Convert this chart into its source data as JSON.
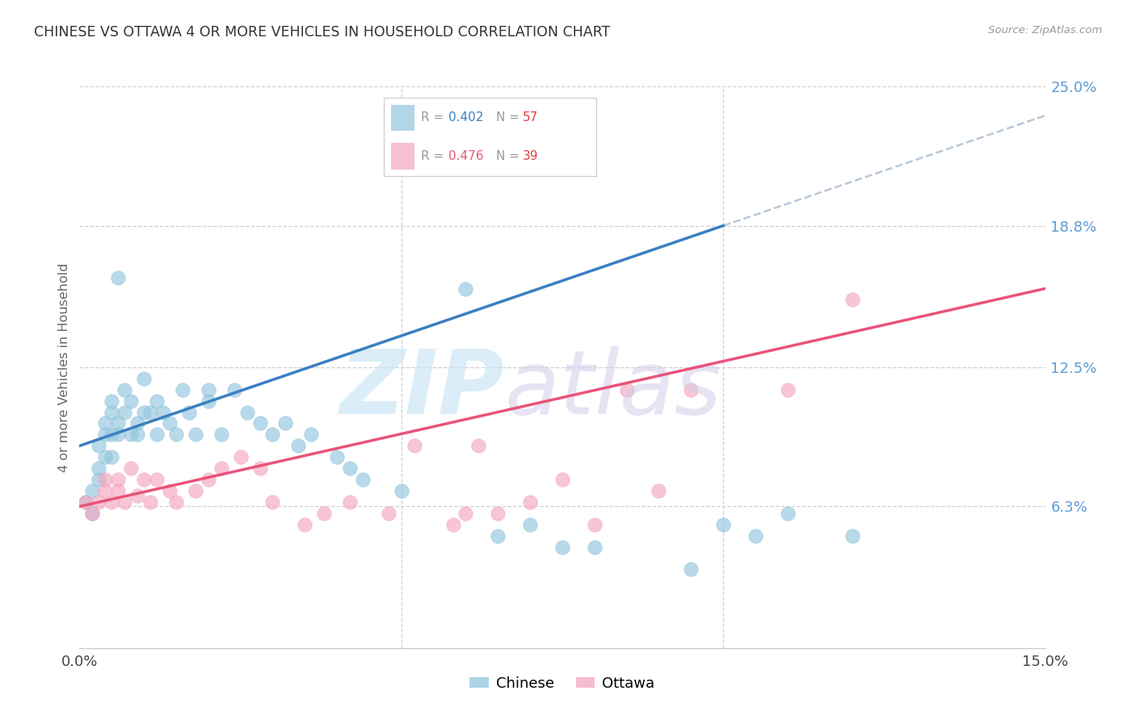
{
  "title": "CHINESE VS OTTAWA 4 OR MORE VEHICLES IN HOUSEHOLD CORRELATION CHART",
  "source": "Source: ZipAtlas.com",
  "ylabel": "4 or more Vehicles in Household",
  "xlim": [
    0.0,
    0.15
  ],
  "ylim": [
    0.0,
    0.25
  ],
  "chinese_R": 0.402,
  "chinese_N": 57,
  "ottawa_R": 0.476,
  "ottawa_N": 39,
  "chinese_color": "#92c5de",
  "ottawa_color": "#f4a6c0",
  "chinese_line_color": "#3a7fc1",
  "ottawa_line_color": "#e8537a",
  "dashed_line_color": "#b8c8d8",
  "background_color": "#ffffff",
  "grid_color": "#d0d0d0",
  "ytick_vals": [
    0.063,
    0.125,
    0.188,
    0.25
  ],
  "ytick_labels": [
    "6.3%",
    "12.5%",
    "18.8%",
    "25.0%"
  ],
  "blue_line_x0": 0.0,
  "blue_line_y0": 0.09,
  "blue_line_x1": 0.1,
  "blue_line_y1": 0.188,
  "pink_line_x0": 0.0,
  "pink_line_y0": 0.063,
  "pink_line_x1": 0.15,
  "pink_line_y1": 0.16,
  "chinese_x": [
    0.001,
    0.002,
    0.002,
    0.003,
    0.003,
    0.003,
    0.004,
    0.004,
    0.004,
    0.005,
    0.005,
    0.005,
    0.005,
    0.006,
    0.006,
    0.006,
    0.007,
    0.007,
    0.008,
    0.008,
    0.009,
    0.009,
    0.01,
    0.01,
    0.011,
    0.012,
    0.012,
    0.013,
    0.014,
    0.015,
    0.016,
    0.017,
    0.018,
    0.02,
    0.02,
    0.022,
    0.024,
    0.026,
    0.028,
    0.03,
    0.032,
    0.034,
    0.036,
    0.04,
    0.042,
    0.044,
    0.05,
    0.06,
    0.065,
    0.07,
    0.075,
    0.08,
    0.095,
    0.1,
    0.105,
    0.11,
    0.12
  ],
  "chinese_y": [
    0.065,
    0.07,
    0.06,
    0.08,
    0.075,
    0.09,
    0.085,
    0.095,
    0.1,
    0.085,
    0.095,
    0.105,
    0.11,
    0.095,
    0.1,
    0.165,
    0.105,
    0.115,
    0.095,
    0.11,
    0.1,
    0.095,
    0.105,
    0.12,
    0.105,
    0.11,
    0.095,
    0.105,
    0.1,
    0.095,
    0.115,
    0.105,
    0.095,
    0.115,
    0.11,
    0.095,
    0.115,
    0.105,
    0.1,
    0.095,
    0.1,
    0.09,
    0.095,
    0.085,
    0.08,
    0.075,
    0.07,
    0.16,
    0.05,
    0.055,
    0.045,
    0.045,
    0.035,
    0.055,
    0.05,
    0.06,
    0.05
  ],
  "ottawa_x": [
    0.001,
    0.002,
    0.003,
    0.004,
    0.004,
    0.005,
    0.006,
    0.006,
    0.007,
    0.008,
    0.009,
    0.01,
    0.011,
    0.012,
    0.014,
    0.015,
    0.018,
    0.02,
    0.022,
    0.025,
    0.028,
    0.03,
    0.035,
    0.038,
    0.042,
    0.048,
    0.052,
    0.058,
    0.06,
    0.062,
    0.065,
    0.07,
    0.075,
    0.08,
    0.085,
    0.09,
    0.095,
    0.11,
    0.12
  ],
  "ottawa_y": [
    0.065,
    0.06,
    0.065,
    0.07,
    0.075,
    0.065,
    0.075,
    0.07,
    0.065,
    0.08,
    0.068,
    0.075,
    0.065,
    0.075,
    0.07,
    0.065,
    0.07,
    0.075,
    0.08,
    0.085,
    0.08,
    0.065,
    0.055,
    0.06,
    0.065,
    0.06,
    0.09,
    0.055,
    0.06,
    0.09,
    0.06,
    0.065,
    0.075,
    0.055,
    0.115,
    0.07,
    0.115,
    0.115,
    0.155
  ]
}
